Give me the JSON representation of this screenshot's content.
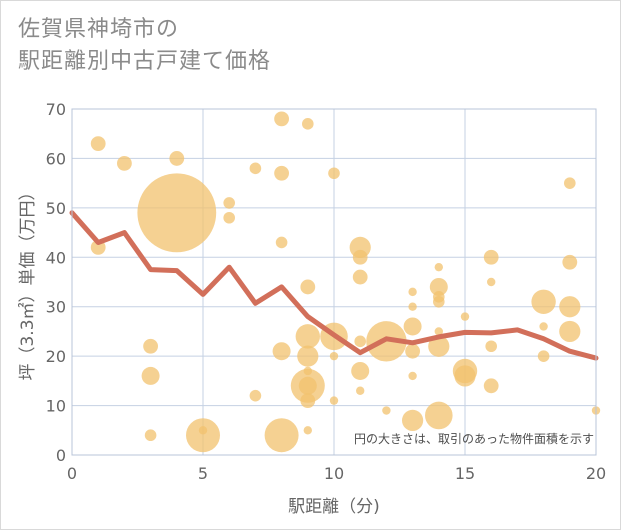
{
  "title": {
    "line1": "佐賀県神埼市の",
    "line2": "駅距離別中古戸建て価格"
  },
  "colors": {
    "bubble": "#f2c26e",
    "line": "#d26f5a",
    "grid": "#c5d1e3",
    "plot_border": "#b8c4d8"
  },
  "chart_data": {
    "type": "scatter",
    "xlabel": "駅距離（分)",
    "ylabel": "坪（3.3㎡）単価（万円）",
    "xlim": [
      0,
      20
    ],
    "ylim": [
      0,
      70
    ],
    "x_ticks": [
      "0",
      "5",
      "10",
      "15",
      "20"
    ],
    "y_ticks": [
      "0",
      "10",
      "20",
      "30",
      "40",
      "50",
      "60",
      "70"
    ],
    "note": "円の大きさは、取引のあった物件面積を示す",
    "grid": true,
    "series": [
      {
        "kind": "bubble",
        "points": [
          {
            "x": 1,
            "y": 63,
            "s": 2
          },
          {
            "x": 1,
            "y": 42,
            "s": 2
          },
          {
            "x": 2,
            "y": 59,
            "s": 2
          },
          {
            "x": 3,
            "y": 22,
            "s": 2
          },
          {
            "x": 3,
            "y": 16,
            "s": 2.5
          },
          {
            "x": 3,
            "y": 4,
            "s": 1.5
          },
          {
            "x": 4,
            "y": 60,
            "s": 2
          },
          {
            "x": 4,
            "y": 49,
            "s": 12
          },
          {
            "x": 5,
            "y": 4,
            "s": 5
          },
          {
            "x": 5,
            "y": 5,
            "s": 1
          },
          {
            "x": 6,
            "y": 51,
            "s": 1.5
          },
          {
            "x": 6,
            "y": 48,
            "s": 1.5
          },
          {
            "x": 7,
            "y": 58,
            "s": 1.5
          },
          {
            "x": 7,
            "y": 12,
            "s": 1.5
          },
          {
            "x": 8,
            "y": 68,
            "s": 2
          },
          {
            "x": 8,
            "y": 57,
            "s": 2
          },
          {
            "x": 8,
            "y": 43,
            "s": 1.5
          },
          {
            "x": 8,
            "y": 21,
            "s": 2.5
          },
          {
            "x": 8,
            "y": 4,
            "s": 5
          },
          {
            "x": 9,
            "y": 67,
            "s": 1.5
          },
          {
            "x": 9,
            "y": 34,
            "s": 2
          },
          {
            "x": 9,
            "y": 24,
            "s": 3.5
          },
          {
            "x": 9,
            "y": 20,
            "s": 3
          },
          {
            "x": 9,
            "y": 17,
            "s": 1
          },
          {
            "x": 9,
            "y": 14,
            "s": 5
          },
          {
            "x": 9,
            "y": 14,
            "s": 2.5
          },
          {
            "x": 9,
            "y": 11,
            "s": 2
          },
          {
            "x": 9,
            "y": 5,
            "s": 1
          },
          {
            "x": 10,
            "y": 57,
            "s": 1.5
          },
          {
            "x": 10,
            "y": 24,
            "s": 4
          },
          {
            "x": 10,
            "y": 20,
            "s": 1
          },
          {
            "x": 10,
            "y": 11,
            "s": 1
          },
          {
            "x": 11,
            "y": 42,
            "s": 3
          },
          {
            "x": 11,
            "y": 40,
            "s": 2
          },
          {
            "x": 11,
            "y": 36,
            "s": 2
          },
          {
            "x": 11,
            "y": 23,
            "s": 1.5
          },
          {
            "x": 11,
            "y": 17,
            "s": 2.5
          },
          {
            "x": 11,
            "y": 13,
            "s": 1
          },
          {
            "x": 12,
            "y": 23,
            "s": 6
          },
          {
            "x": 12,
            "y": 9,
            "s": 1
          },
          {
            "x": 13,
            "y": 33,
            "s": 1
          },
          {
            "x": 13,
            "y": 30,
            "s": 1
          },
          {
            "x": 13,
            "y": 26,
            "s": 2.5
          },
          {
            "x": 13,
            "y": 21,
            "s": 2
          },
          {
            "x": 13,
            "y": 16,
            "s": 1
          },
          {
            "x": 13,
            "y": 7,
            "s": 3
          },
          {
            "x": 14,
            "y": 38,
            "s": 1
          },
          {
            "x": 14,
            "y": 34,
            "s": 2.5
          },
          {
            "x": 14,
            "y": 32,
            "s": 1.5
          },
          {
            "x": 14,
            "y": 31,
            "s": 1.5
          },
          {
            "x": 14,
            "y": 25,
            "s": 1
          },
          {
            "x": 14,
            "y": 22,
            "s": 3
          },
          {
            "x": 14,
            "y": 8,
            "s": 4
          },
          {
            "x": 15,
            "y": 28,
            "s": 1
          },
          {
            "x": 15,
            "y": 17,
            "s": 3.5
          },
          {
            "x": 15,
            "y": 16,
            "s": 3
          },
          {
            "x": 16,
            "y": 40,
            "s": 2
          },
          {
            "x": 16,
            "y": 35,
            "s": 1
          },
          {
            "x": 16,
            "y": 22,
            "s": 1.5
          },
          {
            "x": 16,
            "y": 14,
            "s": 2
          },
          {
            "x": 18,
            "y": 31,
            "s": 3.5
          },
          {
            "x": 18,
            "y": 26,
            "s": 1
          },
          {
            "x": 18,
            "y": 20,
            "s": 1.5
          },
          {
            "x": 19,
            "y": 55,
            "s": 1.5
          },
          {
            "x": 19,
            "y": 39,
            "s": 2
          },
          {
            "x": 19,
            "y": 30,
            "s": 3
          },
          {
            "x": 19,
            "y": 25,
            "s": 3
          },
          {
            "x": 20,
            "y": 9,
            "s": 1
          }
        ]
      },
      {
        "kind": "line",
        "x": [
          0,
          1,
          2,
          3,
          4,
          5,
          6,
          7,
          8,
          9,
          10,
          11,
          12,
          13,
          14,
          15,
          16,
          17,
          18,
          19,
          20
        ],
        "y": [
          49,
          43,
          45,
          37.5,
          37.3,
          32.5,
          38,
          30.7,
          34,
          28,
          24.3,
          20.7,
          23.5,
          22.7,
          23.9,
          24.8,
          24.7,
          25.3,
          23.5,
          21,
          19.6
        ]
      }
    ]
  }
}
